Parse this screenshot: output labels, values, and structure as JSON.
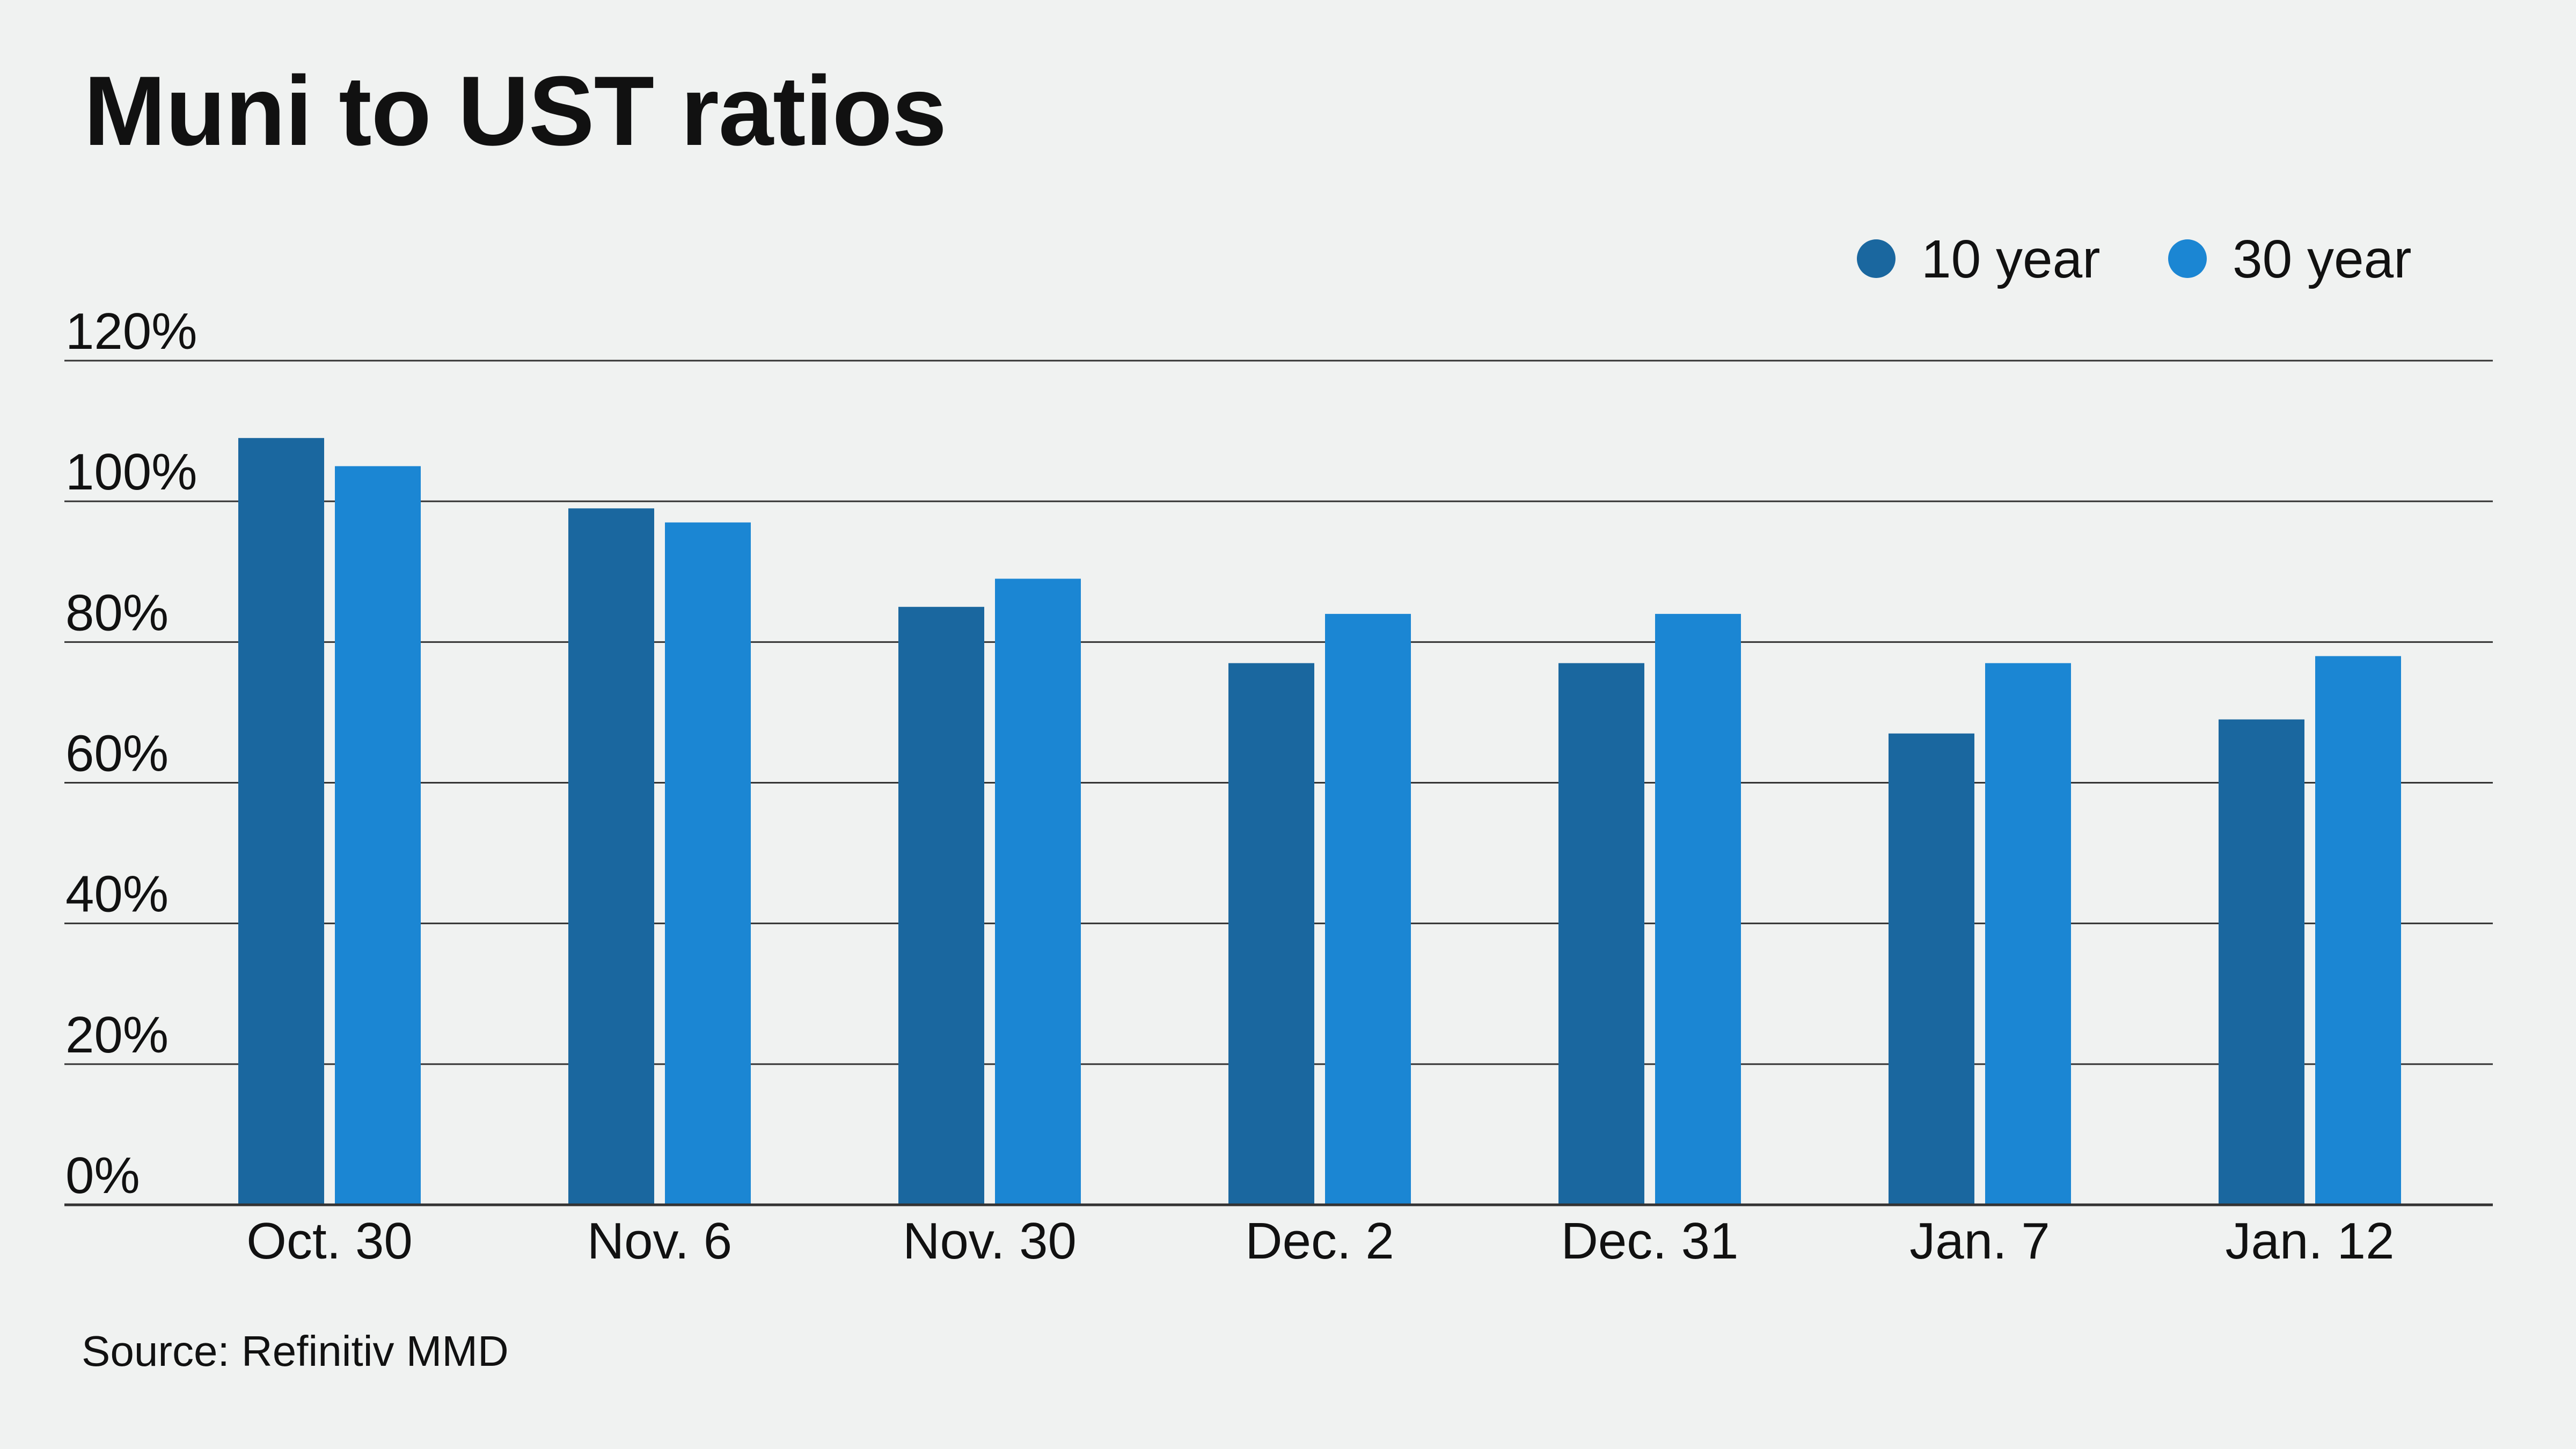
{
  "title": "Muni to UST ratios",
  "source": "Source: Refinitiv MMD",
  "colors": {
    "background": "#f0f2f1",
    "series_10y": "#1a679f",
    "series_30y": "#1b86d3",
    "gridline": "#333333",
    "text": "#111111"
  },
  "chart_data": {
    "type": "bar",
    "title": "Muni to UST ratios",
    "xlabel": "",
    "ylabel": "",
    "categories": [
      "Oct. 30",
      "Nov. 6",
      "Nov. 30",
      "Dec. 2",
      "Dec. 31",
      "Jan. 7",
      "Jan. 12"
    ],
    "series": [
      {
        "name": "10 year",
        "color": "#1a679f",
        "values": [
          109,
          99,
          85,
          77,
          77,
          67,
          69
        ]
      },
      {
        "name": "30 year",
        "color": "#1b86d3",
        "values": [
          105,
          97,
          89,
          84,
          84,
          77,
          78
        ]
      }
    ],
    "ylim": [
      0,
      120
    ],
    "yticks": [
      0,
      20,
      40,
      60,
      80,
      100,
      120
    ],
    "ytick_labels": [
      "0%",
      "20%",
      "40%",
      "60%",
      "80%",
      "100%",
      "120%"
    ],
    "grid": true,
    "legend_position": "top-right"
  }
}
